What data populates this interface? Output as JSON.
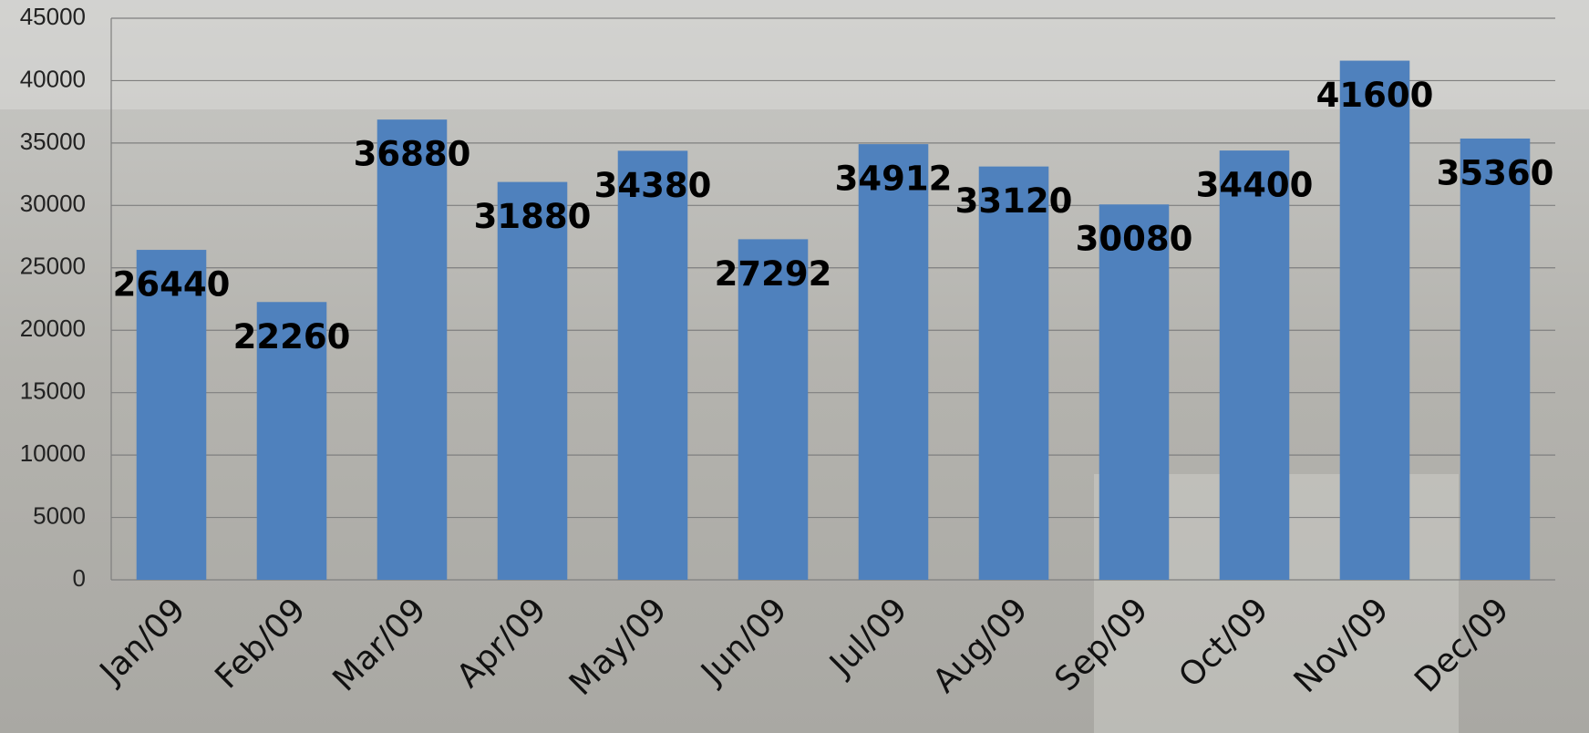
{
  "chart_data": {
    "type": "bar",
    "categories": [
      "Jan/09",
      "Feb/09",
      "Mar/09",
      "Apr/09",
      "May/09",
      "Jun/09",
      "Jul/09",
      "Aug/09",
      "Sep/09",
      "Oct/09",
      "Nov/09",
      "Dec/09"
    ],
    "values": [
      26440,
      22260,
      36880,
      31880,
      34380,
      27292,
      34912,
      33120,
      30080,
      34400,
      41600,
      35360
    ],
    "color": "#4f81bd",
    "ylim": [
      0,
      45000
    ],
    "yticks": [
      0,
      5000,
      10000,
      15000,
      20000,
      25000,
      30000,
      35000,
      40000,
      45000
    ],
    "grid": true
  }
}
